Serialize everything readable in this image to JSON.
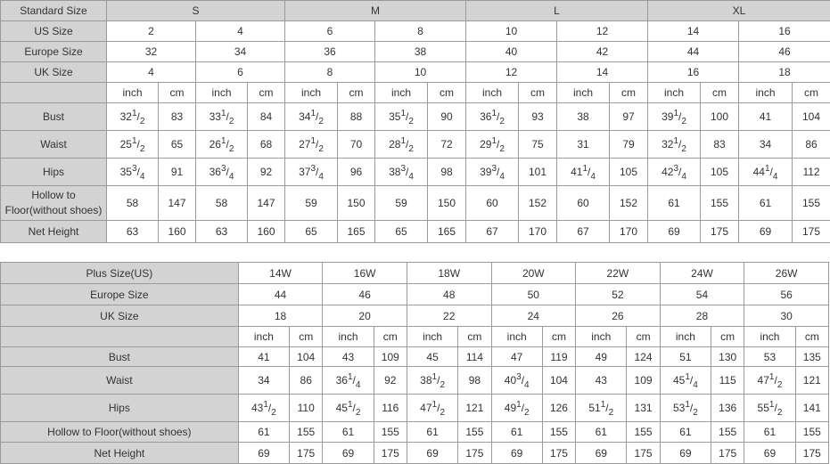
{
  "standard_table": {
    "header_label": "Standard Size",
    "groups": [
      "S",
      "M",
      "L",
      "XL"
    ],
    "us_label": "US Size",
    "us": [
      "2",
      "4",
      "6",
      "8",
      "10",
      "12",
      "14",
      "16"
    ],
    "europe_label": "Europe Size",
    "europe": [
      "32",
      "34",
      "36",
      "38",
      "40",
      "42",
      "44",
      "46"
    ],
    "uk_label": "UK Size",
    "uk": [
      "4",
      "6",
      "8",
      "10",
      "12",
      "14",
      "16",
      "18"
    ],
    "unit_inch": "inch",
    "unit_cm": "cm",
    "rows": [
      {
        "label": "Bust",
        "values": [
          "32 1/2",
          "83",
          "33 1/2",
          "84",
          "34 1/2",
          "88",
          "35 1/2",
          "90",
          "36 1/2",
          "93",
          "38",
          "97",
          "39 1/2",
          "100",
          "41",
          "104"
        ]
      },
      {
        "label": "Waist",
        "values": [
          "25 1/2",
          "65",
          "26 1/2",
          "68",
          "27 1/2",
          "70",
          "28 1/2",
          "72",
          "29 1/2",
          "75",
          "31",
          "79",
          "32 1/2",
          "83",
          "34",
          "86"
        ]
      },
      {
        "label": "Hips",
        "values": [
          "35 3/4",
          "91",
          "36 3/4",
          "92",
          "37 3/4",
          "96",
          "38 3/4",
          "98",
          "39 3/4",
          "101",
          "41 1/4",
          "105",
          "42 3/4",
          "105",
          "44 1/4",
          "112"
        ]
      },
      {
        "label": "Hollow to Floor(without shoes)",
        "values": [
          "58",
          "147",
          "58",
          "147",
          "59",
          "150",
          "59",
          "150",
          "60",
          "152",
          "60",
          "152",
          "61",
          "155",
          "61",
          "155"
        ]
      },
      {
        "label": "Net Height",
        "values": [
          "63",
          "160",
          "63",
          "160",
          "65",
          "165",
          "65",
          "165",
          "67",
          "170",
          "67",
          "170",
          "69",
          "175",
          "69",
          "175"
        ]
      }
    ]
  },
  "plus_table": {
    "header_label": "Plus Size(US)",
    "sizes": [
      "14W",
      "16W",
      "18W",
      "20W",
      "22W",
      "24W",
      "26W"
    ],
    "europe_label": "Europe Size",
    "europe": [
      "44",
      "46",
      "48",
      "50",
      "52",
      "54",
      "56"
    ],
    "uk_label": "UK Size",
    "uk": [
      "18",
      "20",
      "22",
      "24",
      "26",
      "28",
      "30"
    ],
    "unit_inch": "inch",
    "unit_cm": "cm",
    "rows": [
      {
        "label": "Bust",
        "values": [
          "41",
          "104",
          "43",
          "109",
          "45",
          "114",
          "47",
          "119",
          "49",
          "124",
          "51",
          "130",
          "53",
          "135"
        ]
      },
      {
        "label": "Waist",
        "values": [
          "34",
          "86",
          "36 1/4",
          "92",
          "38 1/2",
          "98",
          "40 3/4",
          "104",
          "43",
          "109",
          "45 1/4",
          "115",
          "47 1/2",
          "121"
        ]
      },
      {
        "label": "Hips",
        "values": [
          "43 1/2",
          "110",
          "45 1/2",
          "116",
          "47 1/2",
          "121",
          "49 1/2",
          "126",
          "51 1/2",
          "131",
          "53 1/2",
          "136",
          "55 1/2",
          "141"
        ]
      },
      {
        "label": "Hollow to Floor(without shoes)",
        "values": [
          "61",
          "155",
          "61",
          "155",
          "61",
          "155",
          "61",
          "155",
          "61",
          "155",
          "61",
          "155",
          "61",
          "155"
        ]
      },
      {
        "label": "Net Height",
        "values": [
          "69",
          "175",
          "69",
          "175",
          "69",
          "175",
          "69",
          "175",
          "69",
          "175",
          "69",
          "175",
          "69",
          "175"
        ]
      }
    ]
  }
}
